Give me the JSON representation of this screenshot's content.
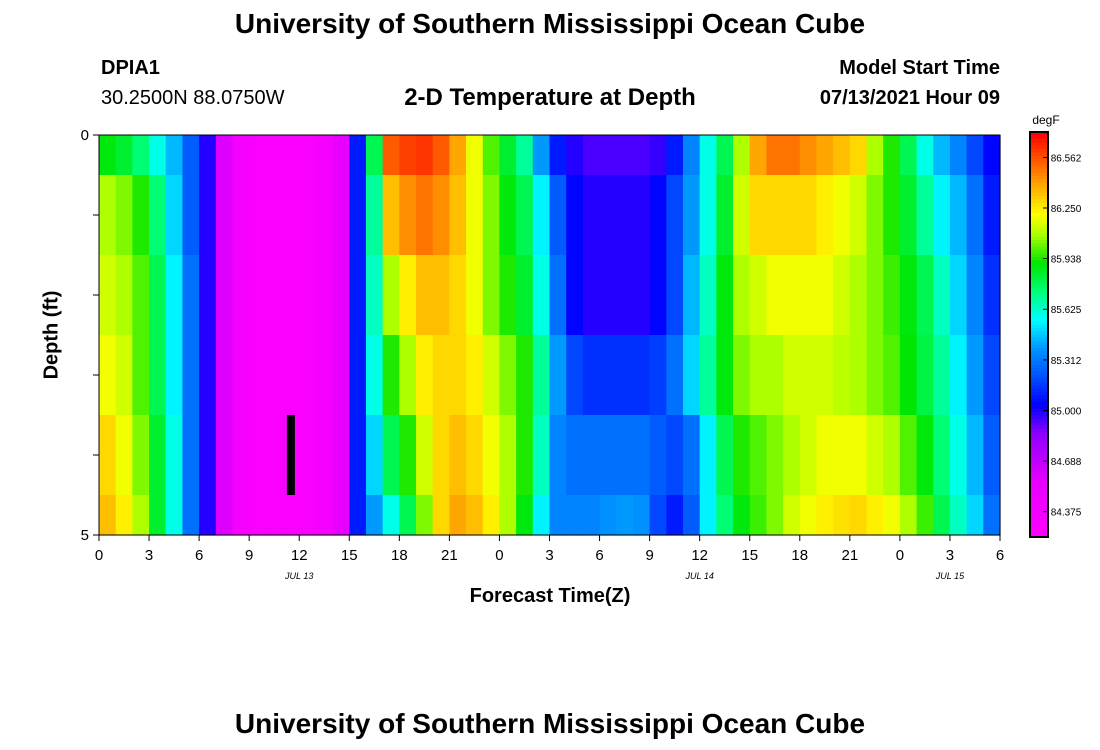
{
  "header": {
    "title_top": "University of Southern Mississippi Ocean Cube",
    "title_bottom": "University of Southern Mississippi Ocean Cube",
    "station_id": "DPIA1",
    "station_coords": "30.2500N  88.0750W",
    "plot_title": "2-D Temperature at Depth",
    "model_start_label": "Model Start Time",
    "model_start_value": "07/13/2021 Hour 09"
  },
  "chart_data": {
    "type": "heatmap",
    "title": "2-D Temperature at Depth",
    "xlabel": "Forecast Time(Z)",
    "ylabel": "Depth (ft)",
    "x_tick_labels": [
      "0",
      "3",
      "6",
      "9",
      "12",
      "15",
      "18",
      "21",
      "0",
      "3",
      "6",
      "9",
      "12",
      "15",
      "18",
      "21",
      "0",
      "3",
      "6"
    ],
    "x_range_hours": [
      0,
      54
    ],
    "date_labels": [
      {
        "text": "JUL 13",
        "hour": 12
      },
      {
        "text": "JUL 14",
        "hour": 36
      },
      {
        "text": "JUL 15",
        "hour": 51
      }
    ],
    "y_tick_labels": [
      "0",
      "5"
    ],
    "ylim": [
      0,
      5
    ],
    "colorbar": {
      "unit": "degF",
      "min": 84.219,
      "max": 86.719,
      "ticks": [
        "86.562",
        "86.250",
        "85.938",
        "85.625",
        "85.312",
        "85.000",
        "84.688",
        "84.375"
      ],
      "tick_values": [
        86.562,
        86.25,
        85.938,
        85.625,
        85.312,
        85.0,
        84.688,
        84.375
      ]
    },
    "depth_bands_ft": [
      0,
      0.5,
      1.5,
      2.5,
      3.5,
      4.5,
      5
    ],
    "columns_hour": [
      0,
      1,
      2,
      3,
      4,
      5,
      6,
      7,
      8,
      9,
      10,
      11,
      12,
      13,
      14,
      15,
      16,
      17,
      18,
      19,
      20,
      21,
      22,
      23,
      24,
      25,
      26,
      27,
      28,
      29,
      30,
      31,
      32,
      33,
      34,
      35,
      36,
      37,
      38,
      39,
      40,
      41,
      42,
      43,
      44,
      45,
      46,
      47,
      48,
      49,
      50,
      51,
      52,
      53
    ],
    "values_degF": [
      [
        85.9,
        85.85,
        85.75,
        85.6,
        85.45,
        85.25,
        85.0,
        84.6,
        84.35,
        84.3,
        84.3,
        84.3,
        84.3,
        84.35,
        84.55,
        85.1,
        85.8,
        86.55,
        86.6,
        86.62,
        86.55,
        86.4,
        86.2,
        86.0,
        85.85,
        85.7,
        85.4,
        85.1,
        85.0,
        84.95,
        84.95,
        84.95,
        84.95,
        84.98,
        85.1,
        85.35,
        85.6,
        85.8,
        86.1,
        86.4,
        86.5,
        86.5,
        86.45,
        86.4,
        86.35,
        86.3,
        86.1,
        85.95,
        85.8,
        85.6,
        85.45,
        85.35,
        85.2,
        85.05
      ],
      [
        86.1,
        86.05,
        85.95,
        85.75,
        85.5,
        85.25,
        85.0,
        84.6,
        84.35,
        84.3,
        84.3,
        84.3,
        84.3,
        84.35,
        84.55,
        85.1,
        85.7,
        86.35,
        86.45,
        86.5,
        86.45,
        86.35,
        86.2,
        86.05,
        85.9,
        85.8,
        85.55,
        85.25,
        85.05,
        85.0,
        85.0,
        85.0,
        85.0,
        85.05,
        85.2,
        85.4,
        85.6,
        85.85,
        86.15,
        86.3,
        86.3,
        86.3,
        86.3,
        86.25,
        86.2,
        86.15,
        86.05,
        85.95,
        85.85,
        85.7,
        85.55,
        85.45,
        85.3,
        85.1
      ],
      [
        86.15,
        86.1,
        86.0,
        85.8,
        85.55,
        85.3,
        85.0,
        84.6,
        84.35,
        84.3,
        84.3,
        84.3,
        84.3,
        84.35,
        84.55,
        85.1,
        85.65,
        86.1,
        86.25,
        86.35,
        86.35,
        86.3,
        86.2,
        86.05,
        85.95,
        85.85,
        85.6,
        85.3,
        85.05,
        85.0,
        85.0,
        85.0,
        85.0,
        85.05,
        85.2,
        85.45,
        85.65,
        85.9,
        86.1,
        86.15,
        86.2,
        86.2,
        86.2,
        86.2,
        86.15,
        86.1,
        86.05,
        85.98,
        85.9,
        85.8,
        85.65,
        85.5,
        85.35,
        85.15
      ],
      [
        86.2,
        86.15,
        86.0,
        85.8,
        85.55,
        85.3,
        85.0,
        84.6,
        84.35,
        84.3,
        84.3,
        84.3,
        84.3,
        84.35,
        84.55,
        85.1,
        85.6,
        85.95,
        86.1,
        86.25,
        86.3,
        86.3,
        86.25,
        86.15,
        86.05,
        85.95,
        85.7,
        85.4,
        85.2,
        85.15,
        85.15,
        85.15,
        85.15,
        85.18,
        85.3,
        85.5,
        85.7,
        85.9,
        86.05,
        86.1,
        86.1,
        86.15,
        86.15,
        86.15,
        86.12,
        86.1,
        86.05,
        86.0,
        85.92,
        85.82,
        85.7,
        85.55,
        85.4,
        85.2
      ],
      [
        86.3,
        86.2,
        86.05,
        85.85,
        85.6,
        85.3,
        85.0,
        84.6,
        84.35,
        84.3,
        84.3,
        84.3,
        84.3,
        84.35,
        84.55,
        85.1,
        85.5,
        85.8,
        85.95,
        86.15,
        86.3,
        86.35,
        86.3,
        86.2,
        86.1,
        85.95,
        85.65,
        85.35,
        85.3,
        85.3,
        85.3,
        85.3,
        85.3,
        85.25,
        85.2,
        85.3,
        85.55,
        85.8,
        85.95,
        86.0,
        86.05,
        86.1,
        86.15,
        86.2,
        86.2,
        86.2,
        86.15,
        86.1,
        86.0,
        85.9,
        85.75,
        85.6,
        85.45,
        85.25
      ],
      [
        86.35,
        86.25,
        86.1,
        85.85,
        85.6,
        85.3,
        85.0,
        84.6,
        84.35,
        84.3,
        84.3,
        84.3,
        84.3,
        84.35,
        84.55,
        85.1,
        85.4,
        85.6,
        85.8,
        86.05,
        86.3,
        86.4,
        86.35,
        86.25,
        86.1,
        85.9,
        85.55,
        85.35,
        85.35,
        85.35,
        85.38,
        85.4,
        85.38,
        85.2,
        85.1,
        85.25,
        85.55,
        85.75,
        85.9,
        85.98,
        86.05,
        86.15,
        86.2,
        86.25,
        86.28,
        86.3,
        86.25,
        86.2,
        86.1,
        85.98,
        85.8,
        85.65,
        85.5,
        85.3
      ]
    ],
    "annotation": {
      "type": "black-vertical-bar",
      "hour": 11.5,
      "depth_from": 3.5,
      "depth_to": 4.5
    }
  }
}
